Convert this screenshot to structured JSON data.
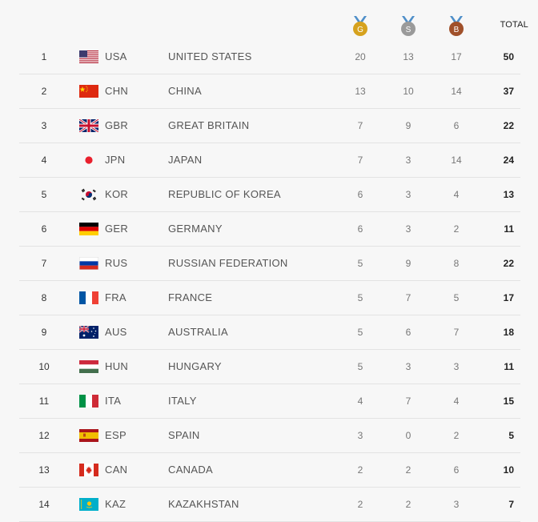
{
  "header": {
    "gold_letter": "G",
    "silver_letter": "S",
    "bronze_letter": "B",
    "total_label": "TOTAL",
    "colors": {
      "gold": "#d6a21e",
      "silver": "#9a9a9a",
      "bronze": "#a0502a",
      "ribbon": "#4f8fc9"
    }
  },
  "rows": [
    {
      "rank": "1",
      "flag": "usa-flag-icon",
      "code": "USA",
      "name": "UNITED STATES",
      "gold": "20",
      "silver": "13",
      "bronze": "17",
      "total": "50"
    },
    {
      "rank": "2",
      "flag": "china-flag-icon",
      "code": "CHN",
      "name": "CHINA",
      "gold": "13",
      "silver": "10",
      "bronze": "14",
      "total": "37"
    },
    {
      "rank": "3",
      "flag": "great-britain-flag-icon",
      "code": "GBR",
      "name": "GREAT BRITAIN",
      "gold": "7",
      "silver": "9",
      "bronze": "6",
      "total": "22"
    },
    {
      "rank": "4",
      "flag": "japan-flag-icon",
      "code": "JPN",
      "name": "JAPAN",
      "gold": "7",
      "silver": "3",
      "bronze": "14",
      "total": "24"
    },
    {
      "rank": "5",
      "flag": "korea-flag-icon",
      "code": "KOR",
      "name": "REPUBLIC OF KOREA",
      "gold": "6",
      "silver": "3",
      "bronze": "4",
      "total": "13"
    },
    {
      "rank": "6",
      "flag": "germany-flag-icon",
      "code": "GER",
      "name": "GERMANY",
      "gold": "6",
      "silver": "3",
      "bronze": "2",
      "total": "11"
    },
    {
      "rank": "7",
      "flag": "russia-flag-icon",
      "code": "RUS",
      "name": "RUSSIAN FEDERATION",
      "gold": "5",
      "silver": "9",
      "bronze": "8",
      "total": "22"
    },
    {
      "rank": "8",
      "flag": "france-flag-icon",
      "code": "FRA",
      "name": "FRANCE",
      "gold": "5",
      "silver": "7",
      "bronze": "5",
      "total": "17"
    },
    {
      "rank": "9",
      "flag": "australia-flag-icon",
      "code": "AUS",
      "name": "AUSTRALIA",
      "gold": "5",
      "silver": "6",
      "bronze": "7",
      "total": "18"
    },
    {
      "rank": "10",
      "flag": "hungary-flag-icon",
      "code": "HUN",
      "name": "HUNGARY",
      "gold": "5",
      "silver": "3",
      "bronze": "3",
      "total": "11"
    },
    {
      "rank": "11",
      "flag": "italy-flag-icon",
      "code": "ITA",
      "name": "ITALY",
      "gold": "4",
      "silver": "7",
      "bronze": "4",
      "total": "15"
    },
    {
      "rank": "12",
      "flag": "spain-flag-icon",
      "code": "ESP",
      "name": "SPAIN",
      "gold": "3",
      "silver": "0",
      "bronze": "2",
      "total": "5"
    },
    {
      "rank": "13",
      "flag": "canada-flag-icon",
      "code": "CAN",
      "name": "CANADA",
      "gold": "2",
      "silver": "2",
      "bronze": "6",
      "total": "10"
    },
    {
      "rank": "14",
      "flag": "kazakhstan-flag-icon",
      "code": "KAZ",
      "name": "KAZAKHSTAN",
      "gold": "2",
      "silver": "2",
      "bronze": "3",
      "total": "7"
    }
  ]
}
